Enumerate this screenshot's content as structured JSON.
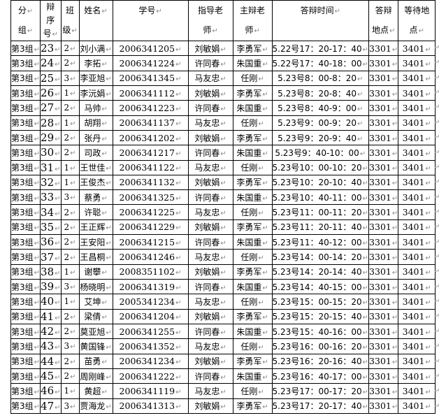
{
  "marks": {
    "return_mark": "↵"
  },
  "colors": {
    "background": "#ffffff",
    "border": "#000000",
    "text": "#000000",
    "formatting_mark": "#8a8a8a"
  },
  "table": {
    "headers": [
      {
        "key": "group",
        "lines": [
          {
            "t": "分",
            "m": true
          },
          {
            "t": "组",
            "m": true
          }
        ]
      },
      {
        "key": "order",
        "lines": [
          {
            "t": "辩",
            "m": false
          },
          {
            "t": "序",
            "m": false
          },
          {
            "t": "号",
            "m": true
          }
        ]
      },
      {
        "key": "class",
        "lines": [
          {
            "t": "班",
            "m": false
          },
          {
            "t": "级",
            "m": true
          }
        ]
      },
      {
        "key": "name",
        "lines": [
          {
            "t": "姓名",
            "m": true
          }
        ]
      },
      {
        "key": "student_id",
        "lines": [
          {
            "t": "学号",
            "m": true
          }
        ]
      },
      {
        "key": "advisor",
        "lines": [
          {
            "t": "指导老",
            "m": false
          },
          {
            "t": "师",
            "m": true
          }
        ]
      },
      {
        "key": "main_examiner",
        "lines": [
          {
            "t": "主辩老",
            "m": false
          },
          {
            "t": "师",
            "m": true
          }
        ]
      },
      {
        "key": "defense_time",
        "lines": [
          {
            "t": "答辩时间",
            "m": true
          }
        ]
      },
      {
        "key": "defense_room",
        "lines": [
          {
            "t": "答辩",
            "m": false
          },
          {
            "t": "地点",
            "m": true
          }
        ]
      },
      {
        "key": "waiting_room",
        "lines": [
          {
            "t": "等待地",
            "m": false
          },
          {
            "t": "点",
            "m": true
          }
        ]
      }
    ],
    "rows": [
      [
        "第3组",
        "23",
        "2",
        "刘小满",
        "2006341205",
        "刘敏娟",
        "李勇军",
        "5.22号17：20-17：40",
        "3301",
        "3401"
      ],
      [
        "第3组",
        "24",
        "2",
        "李拓",
        "2006341224",
        "许同春",
        "朱国重",
        "5.22号17：40-18：00",
        "3301",
        "3401"
      ],
      [
        "第3组",
        "25",
        "3",
        "李亚旭",
        "2006341345",
        "马友忠",
        "任刚",
        "5.23号8：00-8：20",
        "3301",
        "3401"
      ],
      [
        "第3组",
        "26",
        "1",
        "李沅娟",
        "2006341112",
        "刘敏娟",
        "李勇军",
        "5.23号8：20-8：40",
        "3301",
        "3401"
      ],
      [
        "第3组",
        "27",
        "2",
        "马帅",
        "2006341223",
        "许同春",
        "朱国重",
        "5.23号8：40-9：00",
        "3301",
        "3401"
      ],
      [
        "第3组",
        "28",
        "1",
        "胡翔",
        "2006341137",
        "马友忠",
        "任刚",
        "5.23号9：00-9：20",
        "3301",
        "3401"
      ],
      [
        "第3组",
        "29",
        "2",
        "张丹",
        "2006341202",
        "刘敏娟",
        "李勇军",
        "5.23号9：20-9：40",
        "3301",
        "3401"
      ],
      [
        "第3组",
        "30",
        "2",
        "司政",
        "2006341217",
        "许同春",
        "朱国重",
        "5.23号9：40-10：00",
        "3301",
        "3401"
      ],
      [
        "第3组",
        "31",
        "1",
        "王世佳",
        "2006341122",
        "马友忠",
        "任刚",
        "5.23号10：00-10：20",
        "3301",
        "3401"
      ],
      [
        "第3组",
        "32",
        "1",
        "王俊杰",
        "2006341132",
        "刘敏娟",
        "李勇军",
        "5.23号10：20-10：40",
        "3301",
        "3401"
      ],
      [
        "第3组",
        "33",
        "3",
        "蔡勇",
        "2006341325",
        "许同春",
        "朱国重",
        "5.23号10：40-11：00",
        "3301",
        "3401"
      ],
      [
        "第3组",
        "34",
        "2",
        "许聪",
        "2006341225",
        "马友忠",
        "任刚",
        "5.23号11：00-11：20",
        "3301",
        "3401"
      ],
      [
        "第3组",
        "35",
        "2",
        "王正辉",
        "2006341229",
        "刘敏娟",
        "李勇军",
        "5.23号11：20-11：40",
        "3301",
        "3401"
      ],
      [
        "第3组",
        "36",
        "2",
        "王安阳",
        "2006341215",
        "许同春",
        "朱国重",
        "5.23号11：40-12：00",
        "3301",
        "3401"
      ],
      [
        "第3组",
        "37",
        "2",
        "王昌桐",
        "2006341246",
        "马友忠",
        "任刚",
        "5.23号14：00-14：20",
        "3301",
        "3401"
      ],
      [
        "第3组",
        "38",
        "1",
        "谢攀",
        "2008351102",
        "刘敏娟",
        "李勇军",
        "5.23号14：20-14：40",
        "3301",
        "3401"
      ],
      [
        "第3组",
        "39",
        "3",
        "杨晓明",
        "2006341319",
        "许同春",
        "朱国重",
        "5.23号14：40-15：00",
        "3301",
        "3401"
      ],
      [
        "第3组",
        "40",
        "1",
        "艾坤",
        "2005341234",
        "马友忠",
        "任刚",
        "5.23号15：00-15：20",
        "3301",
        "3401"
      ],
      [
        "第3组",
        "41",
        "2",
        "梁倩",
        "2006341204",
        "刘敏娟",
        "李勇军",
        "5.23号15：20-15：40",
        "3301",
        "3401"
      ],
      [
        "第3组",
        "42",
        "2",
        "莫亚旭",
        "2006341255",
        "许同春",
        "朱国重",
        "5.23号15：40-16：00",
        "3301",
        "3401"
      ],
      [
        "第3组",
        "43",
        "3",
        "黄国锋",
        "2006341352",
        "马友忠",
        "任刚",
        "5.23号16：00-16：20",
        "3301",
        "3401"
      ],
      [
        "第3组",
        "44",
        "2",
        "苗勇",
        "2006341234",
        "刘敏娟",
        "李勇军",
        "5.23号16：20-16：40",
        "3301",
        "3401"
      ],
      [
        "第3组",
        "45",
        "2",
        "周刚峰",
        "2006341222",
        "许同春",
        "朱国重",
        "5.23号16：40-17：00",
        "3301",
        "3401"
      ],
      [
        "第3组",
        "46",
        "1",
        "黄超",
        "2006341119",
        "马友忠",
        "任刚",
        "5.23号17：00-17：20",
        "3301",
        "3401"
      ],
      [
        "第3组",
        "47",
        "3",
        "贾海龙",
        "2006341313",
        "刘敏娟",
        "李勇军",
        "5.23号17：20-17：40",
        "3301",
        "3401"
      ]
    ]
  }
}
